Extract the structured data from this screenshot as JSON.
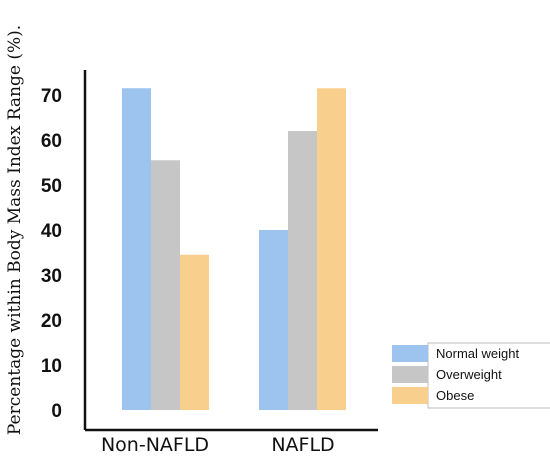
{
  "chart_data": {
    "type": "bar",
    "title": "",
    "xlabel": "",
    "ylabel": "Percentage within Body Mass Index Range (%).",
    "ylim": [
      0,
      75
    ],
    "yticks": [
      0,
      10,
      20,
      30,
      40,
      50,
      60,
      70
    ],
    "categories": [
      "Non-NAFLD",
      "NAFLD"
    ],
    "series": [
      {
        "name": "Normal weight",
        "values": [
          71.5,
          40.0
        ],
        "color": "#9dc3ef"
      },
      {
        "name": "Overweight",
        "values": [
          55.5,
          62.0
        ],
        "color": "#c6c6c6"
      },
      {
        "name": "Obese",
        "values": [
          34.5,
          71.5
        ],
        "color": "#f9cf8d"
      }
    ],
    "legend": "right",
    "grid": false
  }
}
